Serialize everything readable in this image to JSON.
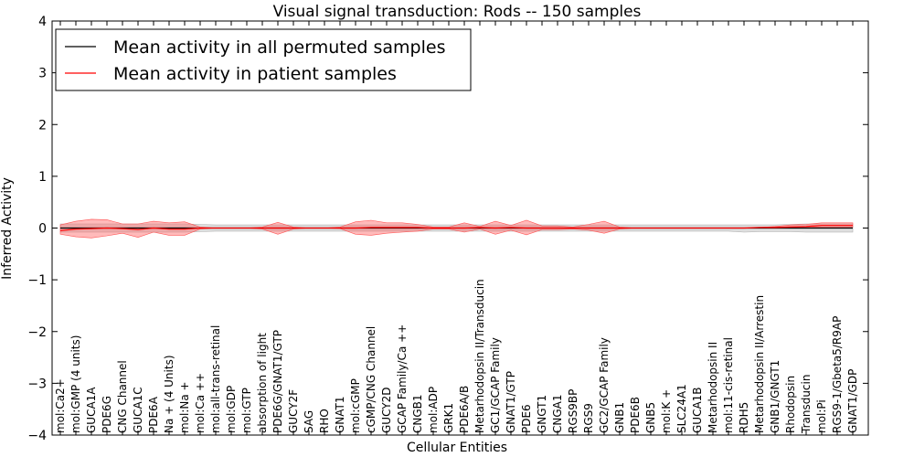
{
  "chart_data": {
    "type": "line",
    "title": "Visual signal transduction: Rods -- 150 samples",
    "xlabel": "Cellular Entities",
    "ylabel": "Inferred Activity",
    "ylim": [
      -4,
      4
    ],
    "yticks": [
      -4,
      -3,
      -2,
      -1,
      0,
      1,
      2,
      3,
      4
    ],
    "ytick_labels": [
      "−4",
      "−3",
      "−2",
      "−1",
      "0",
      "1",
      "2",
      "3",
      "4"
    ],
    "grid": false,
    "legend_position": "top-left",
    "categories": [
      "mol:Ca2+",
      "mol:GMP (4 units)",
      "GUCA1A",
      "PDE6G",
      "CNG Channel",
      "GUCA1C",
      "PDE6A",
      "Na + (4 Units)",
      "mol:Na +",
      "mol:Ca ++",
      "mol:all-trans-retinal",
      "mol:GDP",
      "mol:GTP",
      "absorption of light",
      "PDE6G/GNAT1/GTP",
      "GUCY2F",
      "SAG",
      "RHO",
      "GNAT1",
      "mol:cGMP",
      "cGMP/CNG Channel",
      "GUCY2D",
      "GCAP Family/Ca ++",
      "CNGB1",
      "mol:ADP",
      "GRK1",
      "PDE6A/B",
      "Metarhodopsin II/Transducin",
      "GC1/GCAP Family",
      "GNAT1/GTP",
      "PDE6",
      "GNGT1",
      "CNGA1",
      "RGS9BP",
      "RGS9",
      "GC2/GCAP Family",
      "GNB1",
      "PDE6B",
      "GNB5",
      "mol:K +",
      "SLC24A1",
      "GUCA1B",
      "Metarhodopsin II",
      "mol:11-cis-retinal",
      "RDH5",
      "Metarhodopsin II/Arrestin",
      "GNB1/GNGT1",
      "Rhodopsin",
      "Transducin",
      "mol:Pi",
      "RGS9-1/Gbeta5/R9AP",
      "GNAT1/GDP"
    ],
    "series": [
      {
        "name": "Mean activity in all permuted samples",
        "color": "#000000",
        "values": [
          0.0,
          0.0,
          0.0,
          0.0,
          0.0,
          0.0,
          0.0,
          0.0,
          0.0,
          0.0,
          0.0,
          0.0,
          0.0,
          0.0,
          0.0,
          0.0,
          0.0,
          0.0,
          0.0,
          0.0,
          0.0,
          0.0,
          0.0,
          0.0,
          0.0,
          0.0,
          0.0,
          0.0,
          0.0,
          0.0,
          0.0,
          0.0,
          0.0,
          0.0,
          0.0,
          0.0,
          0.0,
          0.0,
          0.0,
          0.0,
          0.0,
          0.0,
          0.0,
          0.0,
          0.0,
          0.0,
          0.0,
          0.0,
          0.0,
          0.0,
          0.0,
          0.0
        ],
        "lower": [
          -0.08,
          -0.08,
          -0.08,
          -0.08,
          -0.08,
          -0.08,
          -0.08,
          -0.08,
          -0.08,
          -0.07,
          -0.06,
          -0.06,
          -0.06,
          -0.06,
          -0.06,
          -0.06,
          -0.06,
          -0.06,
          -0.06,
          -0.06,
          -0.06,
          -0.06,
          -0.06,
          -0.06,
          -0.06,
          -0.06,
          -0.06,
          -0.06,
          -0.06,
          -0.06,
          -0.06,
          -0.06,
          -0.06,
          -0.06,
          -0.06,
          -0.06,
          -0.06,
          -0.06,
          -0.06,
          -0.06,
          -0.06,
          -0.06,
          -0.06,
          -0.06,
          -0.08,
          -0.07,
          -0.07,
          -0.07,
          -0.08,
          -0.08,
          -0.08,
          -0.08
        ],
        "upper": [
          0.08,
          0.08,
          0.08,
          0.08,
          0.08,
          0.08,
          0.08,
          0.08,
          0.08,
          0.07,
          0.06,
          0.06,
          0.06,
          0.06,
          0.06,
          0.06,
          0.06,
          0.06,
          0.06,
          0.06,
          0.06,
          0.06,
          0.06,
          0.06,
          0.06,
          0.06,
          0.06,
          0.06,
          0.06,
          0.06,
          0.06,
          0.06,
          0.06,
          0.06,
          0.06,
          0.06,
          0.06,
          0.06,
          0.06,
          0.06,
          0.06,
          0.06,
          0.06,
          0.06,
          0.06,
          0.06,
          0.06,
          0.07,
          0.08,
          0.08,
          0.08,
          0.08
        ]
      },
      {
        "name": "Mean activity in patient samples",
        "color": "#ff0000",
        "values": [
          -0.05,
          -0.02,
          -0.01,
          0.0,
          -0.01,
          -0.03,
          0.0,
          -0.02,
          -0.02,
          0.0,
          0.0,
          0.0,
          0.0,
          0.0,
          0.0,
          0.0,
          0.0,
          0.0,
          0.0,
          0.0,
          0.01,
          0.01,
          0.01,
          0.01,
          0.0,
          0.0,
          0.0,
          0.01,
          0.0,
          0.01,
          0.0,
          0.0,
          0.0,
          0.0,
          0.0,
          0.0,
          0.0,
          0.0,
          0.0,
          0.0,
          0.0,
          0.0,
          0.0,
          0.0,
          0.0,
          0.01,
          0.01,
          0.02,
          0.03,
          0.05,
          0.05,
          0.05
        ],
        "lower": [
          -0.12,
          -0.17,
          -0.19,
          -0.15,
          -0.1,
          -0.18,
          -0.08,
          -0.14,
          -0.14,
          -0.02,
          0.0,
          0.0,
          0.0,
          -0.02,
          -0.12,
          -0.02,
          0.0,
          0.0,
          -0.01,
          -0.12,
          -0.14,
          -0.1,
          -0.08,
          -0.06,
          -0.02,
          -0.02,
          -0.08,
          -0.02,
          -0.12,
          -0.04,
          -0.13,
          -0.03,
          -0.03,
          -0.02,
          -0.04,
          -0.1,
          -0.02,
          0.0,
          0.0,
          0.0,
          0.0,
          0.0,
          0.0,
          0.0,
          0.0,
          0.0,
          0.0,
          0.0,
          0.01,
          0.02,
          0.02,
          0.02
        ],
        "upper": [
          0.06,
          0.13,
          0.17,
          0.16,
          0.08,
          0.08,
          0.13,
          0.1,
          0.12,
          0.02,
          0.0,
          0.0,
          0.0,
          0.02,
          0.11,
          0.02,
          0.0,
          0.0,
          0.02,
          0.12,
          0.15,
          0.1,
          0.1,
          0.07,
          0.02,
          0.02,
          0.1,
          0.03,
          0.13,
          0.05,
          0.15,
          0.04,
          0.04,
          0.02,
          0.07,
          0.13,
          0.02,
          0.0,
          0.0,
          0.0,
          0.0,
          0.0,
          0.0,
          0.0,
          0.0,
          0.01,
          0.03,
          0.06,
          0.07,
          0.1,
          0.1,
          0.1
        ]
      }
    ]
  },
  "legend": {
    "permuted_label": "Mean activity in all permuted samples",
    "patient_label": "Mean activity in patient samples",
    "permuted_color": "#000000",
    "patient_color": "#ff0000"
  }
}
